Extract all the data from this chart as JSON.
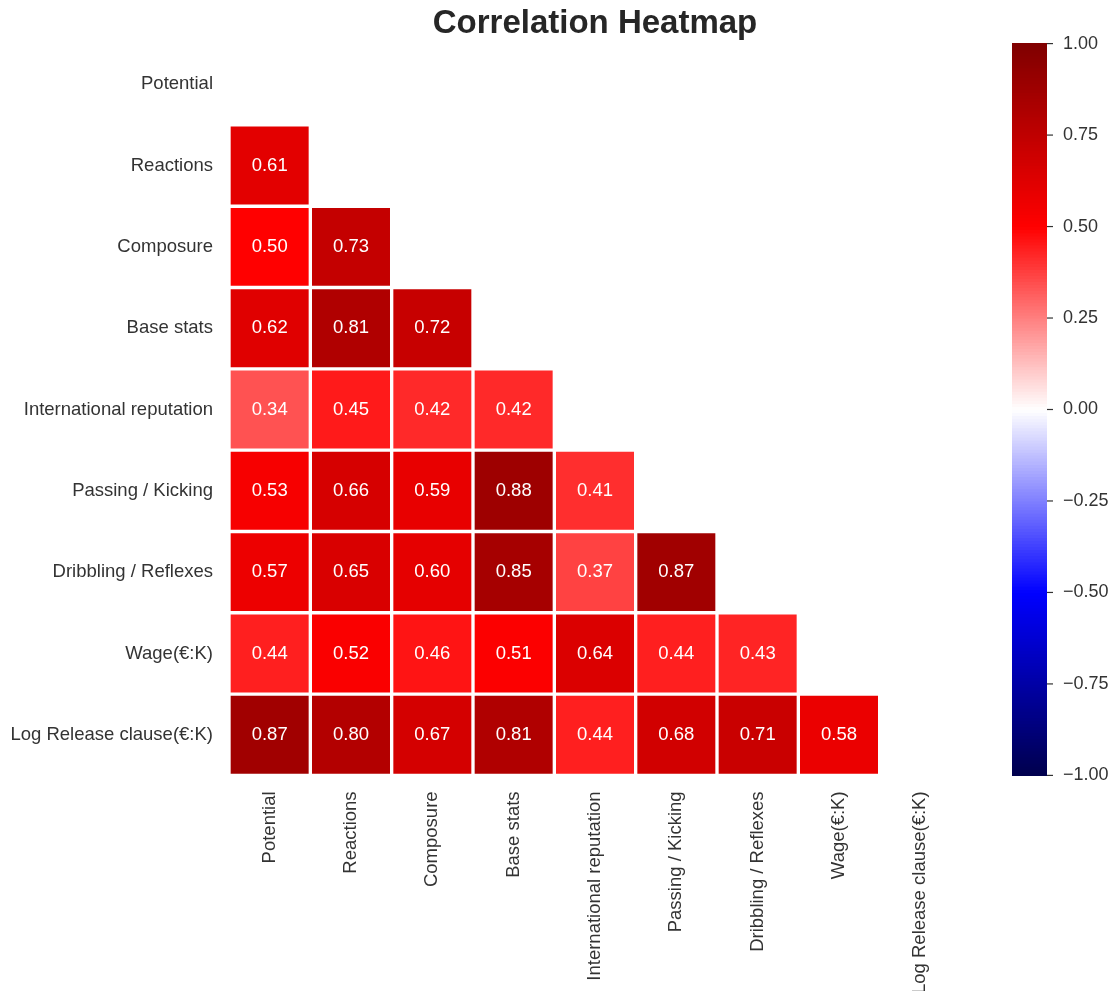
{
  "chart_data": {
    "type": "heatmap",
    "title": "Correlation Heatmap",
    "categories": [
      "Potential",
      "Reactions",
      "Composure",
      "Base stats",
      "International reputation",
      "Passing / Kicking",
      "Dribbling / Reflexes",
      "Wage(€:K)",
      "Log Release clause(€:K)"
    ],
    "y_categories": [
      "Potential",
      "Reactions",
      "Composure",
      "Base stats",
      "International reputation",
      "Passing / Kicking",
      "Dribbling / Reflexes",
      "Wage(€:K)",
      "Log Release clause(€:K)"
    ],
    "cells": [
      [
        null,
        null,
        null,
        null,
        null,
        null,
        null,
        null,
        null
      ],
      [
        0.61,
        null,
        null,
        null,
        null,
        null,
        null,
        null,
        null
      ],
      [
        0.5,
        0.73,
        null,
        null,
        null,
        null,
        null,
        null,
        null
      ],
      [
        0.62,
        0.81,
        0.72,
        null,
        null,
        null,
        null,
        null,
        null
      ],
      [
        0.34,
        0.45,
        0.42,
        0.42,
        null,
        null,
        null,
        null,
        null
      ],
      [
        0.53,
        0.66,
        0.59,
        0.88,
        0.41,
        null,
        null,
        null,
        null
      ],
      [
        0.57,
        0.65,
        0.6,
        0.85,
        0.37,
        0.87,
        null,
        null,
        null
      ],
      [
        0.44,
        0.52,
        0.46,
        0.51,
        0.64,
        0.44,
        0.43,
        null,
        null
      ],
      [
        0.87,
        0.8,
        0.67,
        0.81,
        0.44,
        0.68,
        0.71,
        0.58,
        null
      ]
    ],
    "cell_labels": [
      [
        null,
        null,
        null,
        null,
        null,
        null,
        null,
        null,
        null
      ],
      [
        "0.61",
        null,
        null,
        null,
        null,
        null,
        null,
        null,
        null
      ],
      [
        "0.50",
        "0.73",
        null,
        null,
        null,
        null,
        null,
        null,
        null
      ],
      [
        "0.62",
        "0.81",
        "0.72",
        null,
        null,
        null,
        null,
        null,
        null
      ],
      [
        "0.34",
        "0.45",
        "0.42",
        "0.42",
        null,
        null,
        null,
        null,
        null
      ],
      [
        "0.53",
        "0.66",
        "0.59",
        "0.88",
        "0.41",
        null,
        null,
        null,
        null
      ],
      [
        "0.57",
        "0.65",
        "0.60",
        "0.85",
        "0.37",
        "0.87",
        null,
        null,
        null
      ],
      [
        "0.44",
        "0.52",
        "0.46",
        "0.51",
        "0.64",
        "0.44",
        "0.43",
        null,
        null
      ],
      [
        "0.87",
        "0.80",
        "0.67",
        "0.81",
        "0.44",
        "0.68",
        "0.71",
        "0.58",
        null
      ]
    ],
    "clim": [
      -1,
      1
    ],
    "cticks": [
      {
        "value": -1,
        "label": "−1.00"
      },
      {
        "value": -0.75,
        "label": "−0.75"
      },
      {
        "value": -0.5,
        "label": "−0.50"
      },
      {
        "value": -0.25,
        "label": "−0.25"
      },
      {
        "value": 0,
        "label": "0.00"
      },
      {
        "value": 0.25,
        "label": "0.25"
      },
      {
        "value": 0.5,
        "label": "0.50"
      },
      {
        "value": 0.75,
        "label": "0.75"
      },
      {
        "value": 1,
        "label": "1.00"
      }
    ]
  }
}
